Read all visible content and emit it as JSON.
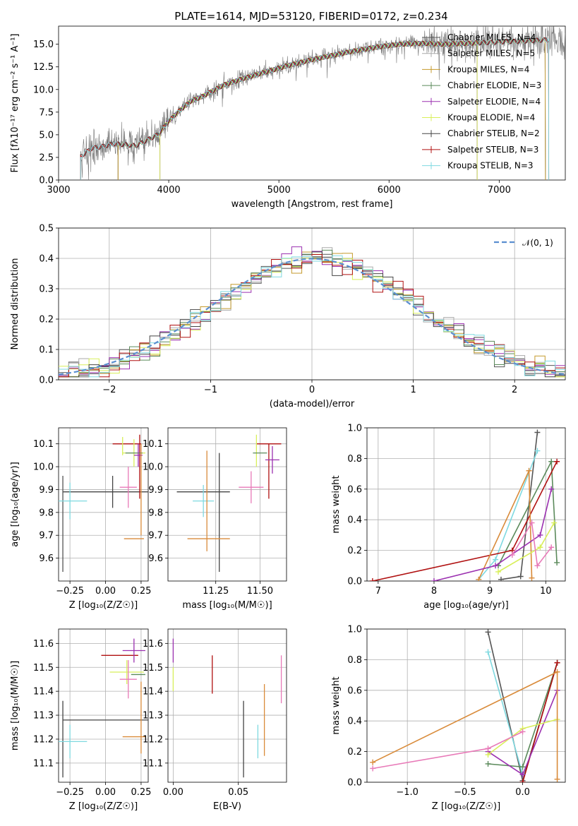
{
  "figure": {
    "title": "PLATE=1614, MJD=53120, FIBERID=0172, z=0.234"
  },
  "colors": {
    "Chabrier MILES": "#555555",
    "Salpeter MILES": "#aaaaaa",
    "Kroupa MILES": "#c49a2c",
    "Chabrier ELODIE": "#5b8a5b",
    "Salpeter ELODIE": "#9b30b0",
    "Kroupa ELODIE": "#d8ef5a",
    "Chabrier STELIB": "#444444",
    "Salpeter STELIB": "#b01010",
    "Kroupa STELIB": "#7fd9e0",
    "pink": "#e87ab8",
    "orange": "#d98b3a",
    "normal": "#5b8fd0"
  },
  "chart_data": [
    {
      "id": "spectrum",
      "type": "line",
      "title": "PLATE=1614, MJD=53120, FIBERID=0172, z=0.234",
      "xlabel": "wavelength [Angstrom, rest frame]",
      "ylabel": "Flux [fλ10⁻¹⁷ erg cm⁻² s⁻¹ A⁻¹]",
      "xlim": [
        3000,
        7600
      ],
      "ylim": [
        0,
        17
      ],
      "xticks": [
        "3000",
        "4000",
        "5000",
        "6000",
        "7000"
      ],
      "yticks": [
        "0.0",
        "2.5",
        "5.0",
        "7.5",
        "10.0",
        "12.5",
        "15.0"
      ],
      "grid": false,
      "legend_position": "top-right",
      "legend": [
        "Chabrier MILES, N_SSP=4",
        "Salpeter MILES, N_SSP=5",
        "Kroupa MILES, N_SSP=4",
        "Chabrier ELODIE, N_SSP=3",
        "Salpeter ELODIE, N_SSP=4",
        "Kroupa ELODIE, N_SSP=4",
        "Chabrier STELIB, N_SSP=2",
        "Salpeter STELIB, N_SSP=3",
        "Kroupa STELIB, N_SSP=3"
      ],
      "continuum": [
        [
          3200,
          2.6
        ],
        [
          3300,
          3.5
        ],
        [
          3400,
          3.7
        ],
        [
          3500,
          4.0
        ],
        [
          3700,
          3.8
        ],
        [
          3900,
          5.0
        ],
        [
          4000,
          6.5
        ],
        [
          4100,
          7.7
        ],
        [
          4200,
          8.7
        ],
        [
          4300,
          9.2
        ],
        [
          4500,
          10.5
        ],
        [
          4700,
          11.3
        ],
        [
          4900,
          12.0
        ],
        [
          5100,
          12.7
        ],
        [
          5300,
          13.3
        ],
        [
          5500,
          13.8
        ],
        [
          5700,
          14.3
        ],
        [
          5900,
          14.7
        ],
        [
          6100,
          15.0
        ],
        [
          6300,
          15.1
        ],
        [
          6500,
          15.0
        ],
        [
          6700,
          15.1
        ],
        [
          6900,
          15.2
        ],
        [
          7100,
          15.3
        ],
        [
          7300,
          15.4
        ],
        [
          7450,
          15.5
        ]
      ],
      "model_start": {
        "MILES": 3540,
        "ELODIE": 3920,
        "STELIB": 3200
      },
      "model_end": {
        "MILES": 7420,
        "ELODIE": 6800,
        "STELIB": 7450
      }
    },
    {
      "id": "residuals",
      "type": "step",
      "xlabel": "(data-model)/error",
      "ylabel": "Normed distribution",
      "xlim": [
        -2.5,
        2.5
      ],
      "ylim": [
        0,
        0.5
      ],
      "xticks": [
        "−2",
        "−1",
        "0",
        "1",
        "2"
      ],
      "yticks": [
        "0.0",
        "0.1",
        "0.2",
        "0.3",
        "0.4",
        "0.5"
      ],
      "grid": true,
      "legend_position": "top-right",
      "legend": [
        "𝒩(0, 1)"
      ],
      "bin_width": 0.1
    },
    {
      "id": "age-vs-Z",
      "type": "errorbar",
      "xlabel": "Z [log₁₀(Z/Z☉)]",
      "ylabel": "age  [log₁₀(age/yr)]",
      "xlim": [
        -0.33,
        0.3
      ],
      "ylim": [
        9.5,
        10.17
      ],
      "xticks": [
        "−0.25",
        "0.00",
        "0.25"
      ],
      "yticks": [
        "9.6",
        "9.7",
        "9.8",
        "9.9",
        "10.0",
        "10.1"
      ],
      "grid": true,
      "points": [
        {
          "model": "Chabrier STELIB",
          "x": 0.05,
          "y": 9.89,
          "xerr": 0.35,
          "yerr": 0.07
        },
        {
          "model": "Chabrier MILES",
          "x": -0.3,
          "y": 9.75,
          "xerr": 0.0,
          "yerr": 0.21
        },
        {
          "model": "Kroupa STELIB",
          "x": -0.25,
          "y": 9.85,
          "xerr": 0.12,
          "yerr": 0.08
        },
        {
          "model": "Salpeter STELIB",
          "x": 0.15,
          "y": 10.1,
          "xerr": 0.1,
          "yerr": 0.0
        },
        {
          "model": "Salpeter STELIB",
          "x": 0.24,
          "y": 10.0,
          "xerr": 0.0,
          "yerr": 0.14
        },
        {
          "model": "Kroupa ELODIE",
          "x": 0.2,
          "y": 10.06,
          "xerr": 0.08,
          "yerr": 0.06
        },
        {
          "model": "Kroupa ELODIE",
          "x": 0.12,
          "y": 10.09,
          "xerr": 0.0,
          "yerr": 0.04
        },
        {
          "model": "Chabrier ELODIE",
          "x": 0.2,
          "y": 10.06,
          "xerr": 0.06,
          "yerr": 0.0
        },
        {
          "model": "Salpeter ELODIE",
          "x": 0.23,
          "y": 10.05,
          "xerr": 0.03,
          "yerr": 0.05
        },
        {
          "model": "pink",
          "x": 0.16,
          "y": 9.91,
          "xerr": 0.06,
          "yerr": 0.09
        },
        {
          "model": "orange",
          "x": 0.2,
          "y": 9.685,
          "xerr": 0.07,
          "yerr": 0.0
        },
        {
          "model": "orange",
          "x": 0.25,
          "y": 9.9,
          "xerr": 0.0,
          "yerr": 0.2
        }
      ]
    },
    {
      "id": "age-vs-mass",
      "type": "errorbar",
      "xlabel": "mass [log₁₀(M/M☉)]",
      "ylabel": "",
      "xlim": [
        10.98,
        11.65
      ],
      "ylim": [
        9.5,
        10.17
      ],
      "xticks": [
        "11.25",
        "11.50"
      ],
      "yticks": [
        "9.6",
        "9.7",
        "9.8",
        "9.9",
        "10.0",
        "10.1"
      ],
      "grid": true,
      "points": [
        {
          "model": "Chabrier STELIB",
          "x": 11.18,
          "y": 9.89,
          "xerr": 0.15,
          "yerr": 0.0
        },
        {
          "model": "Chabrier STELIB",
          "x": 11.27,
          "y": 9.8,
          "xerr": 0.0,
          "yerr": 0.26
        },
        {
          "model": "Kroupa STELIB",
          "x": 11.18,
          "y": 9.85,
          "xerr": 0.06,
          "yerr": 0.07
        },
        {
          "model": "orange",
          "x": 11.21,
          "y": 9.685,
          "xerr": 0.12,
          "yerr": 0.0
        },
        {
          "model": "orange",
          "x": 11.2,
          "y": 9.85,
          "xerr": 0.0,
          "yerr": 0.22
        },
        {
          "model": "Salpeter STELIB",
          "x": 11.55,
          "y": 10.1,
          "xerr": 0.07,
          "yerr": 0.0
        },
        {
          "model": "Salpeter STELIB",
          "x": 11.55,
          "y": 9.98,
          "xerr": 0.0,
          "yerr": 0.12
        },
        {
          "model": "Kroupa ELODIE",
          "x": 11.48,
          "y": 10.07,
          "xerr": 0.0,
          "yerr": 0.07
        },
        {
          "model": "Chabrier ELODIE",
          "x": 11.5,
          "y": 10.06,
          "xerr": 0.04,
          "yerr": 0.0
        },
        {
          "model": "Salpeter ELODIE",
          "x": 11.57,
          "y": 10.03,
          "xerr": 0.04,
          "yerr": 0.06
        },
        {
          "model": "pink",
          "x": 11.45,
          "y": 9.91,
          "xerr": 0.07,
          "yerr": 0.07
        }
      ]
    },
    {
      "id": "massweight-vs-age",
      "type": "line",
      "xlabel": "age  [log₁₀(age/yr)]",
      "ylabel": "mass weight",
      "xlim": [
        6.8,
        10.35
      ],
      "ylim": [
        0,
        1
      ],
      "xticks": [
        "7",
        "8",
        "9",
        "10"
      ],
      "yticks": [
        "0.0",
        "0.2",
        "0.4",
        "0.6",
        "0.8",
        "1.0"
      ],
      "grid": true,
      "series": [
        {
          "model": "Chabrier MILES",
          "x": [
            9.2,
            9.55,
            9.85
          ],
          "y": [
            0.01,
            0.03,
            0.97
          ]
        },
        {
          "model": "Kroupa STELIB",
          "x": [
            8.8,
            9.1,
            9.85
          ],
          "y": [
            0.01,
            0.14,
            0.85
          ]
        },
        {
          "model": "Chabrier ELODIE",
          "x": [
            9.15,
            10.1,
            10.2
          ],
          "y": [
            0.1,
            0.78,
            0.12
          ]
        },
        {
          "model": "Salpeter STELIB",
          "x": [
            6.9,
            9.4,
            10.2
          ],
          "y": [
            0.0,
            0.2,
            0.78
          ]
        },
        {
          "model": "orange",
          "x": [
            8.8,
            9.7,
            9.75
          ],
          "y": [
            0.01,
            0.72,
            0.02
          ]
        },
        {
          "model": "Salpeter ELODIE",
          "x": [
            8.0,
            9.1,
            9.9,
            10.1
          ],
          "y": [
            0.0,
            0.1,
            0.3,
            0.6
          ]
        },
        {
          "model": "Kroupa ELODIE",
          "x": [
            9.15,
            9.9,
            10.15
          ],
          "y": [
            0.06,
            0.22,
            0.38
          ]
        },
        {
          "model": "pink",
          "x": [
            9.4,
            9.75,
            9.85,
            10.1
          ],
          "y": [
            0.17,
            0.38,
            0.1,
            0.22
          ]
        }
      ]
    },
    {
      "id": "mass-vs-Z",
      "type": "errorbar",
      "xlabel": "Z [log₁₀(Z/Z☉)]",
      "ylabel": "mass [log₁₀(M/M☉)]",
      "xlim": [
        -0.33,
        0.3
      ],
      "ylim": [
        11.02,
        11.66
      ],
      "xticks": [
        "−0.25",
        "0.00",
        "0.25"
      ],
      "yticks": [
        "11.1",
        "11.2",
        "11.3",
        "11.4",
        "11.5",
        "11.6"
      ],
      "grid": true,
      "points": [
        {
          "model": "Chabrier STELIB",
          "x": 0.05,
          "y": 11.28,
          "xerr": 0.35,
          "yerr": 0.0
        },
        {
          "model": "Chabrier STELIB",
          "x": -0.3,
          "y": 11.2,
          "xerr": 0.0,
          "yerr": 0.16
        },
        {
          "model": "Kroupa STELIB",
          "x": -0.25,
          "y": 11.19,
          "xerr": 0.12,
          "yerr": 0.07
        },
        {
          "model": "Salpeter STELIB",
          "x": 0.1,
          "y": 11.55,
          "xerr": 0.13,
          "yerr": 0.0
        },
        {
          "model": "Salpeter ELODIE",
          "x": 0.2,
          "y": 11.57,
          "xerr": 0.08,
          "yerr": 0.05
        },
        {
          "model": "Kroupa ELODIE",
          "x": 0.15,
          "y": 11.48,
          "xerr": 0.12,
          "yerr": 0.05
        },
        {
          "model": "Chabrier ELODIE",
          "x": 0.23,
          "y": 11.47,
          "xerr": 0.05,
          "yerr": 0.0
        },
        {
          "model": "pink",
          "x": 0.16,
          "y": 11.45,
          "xerr": 0.06,
          "yerr": 0.08
        },
        {
          "model": "orange",
          "x": 0.25,
          "y": 11.29,
          "xerr": 0.0,
          "yerr": 0.15
        },
        {
          "model": "orange",
          "x": 0.2,
          "y": 11.21,
          "xerr": 0.08,
          "yerr": 0.0
        },
        {
          "model": "Kroupa STELIB",
          "x": 0.25,
          "y": 11.2,
          "xerr": 0.0,
          "yerr": 0.0
        }
      ]
    },
    {
      "id": "mass-vs-EBV",
      "type": "errorbar",
      "xlabel": "E(B-V)",
      "ylabel": "",
      "xlim": [
        -0.004,
        0.087
      ],
      "ylim": [
        11.02,
        11.66
      ],
      "xticks": [
        "0.00",
        "0.05"
      ],
      "yticks": [
        "11.1",
        "11.2",
        "11.3",
        "11.4",
        "11.5",
        "11.6"
      ],
      "grid": true,
      "points": [
        {
          "model": "Salpeter ELODIE",
          "x": 0.0,
          "y": 11.57,
          "xerr": 0.0,
          "yerr": 0.05
        },
        {
          "model": "Kroupa ELODIE",
          "x": 0.0,
          "y": 11.45,
          "xerr": 0.0,
          "yerr": 0.05
        },
        {
          "model": "Salpeter STELIB",
          "x": 0.03,
          "y": 11.47,
          "xerr": 0.0,
          "yerr": 0.08
        },
        {
          "model": "Chabrier STELIB",
          "x": 0.054,
          "y": 11.2,
          "xerr": 0.0,
          "yerr": 0.16
        },
        {
          "model": "Kroupa STELIB",
          "x": 0.065,
          "y": 11.19,
          "xerr": 0.0,
          "yerr": 0.07
        },
        {
          "model": "orange",
          "x": 0.07,
          "y": 11.28,
          "xerr": 0.0,
          "yerr": 0.15
        },
        {
          "model": "pink",
          "x": 0.083,
          "y": 11.45,
          "xerr": 0.0,
          "yerr": 0.1
        }
      ]
    },
    {
      "id": "massweight-vs-Z",
      "type": "line",
      "xlabel": "Z [log₁₀(Z/Z☉)]",
      "ylabel": "mass weight",
      "xlim": [
        -1.35,
        0.37
      ],
      "ylim": [
        0,
        1
      ],
      "xticks": [
        "−1.0",
        "−0.5",
        "0.0"
      ],
      "yticks": [
        "0.0",
        "0.2",
        "0.4",
        "0.6",
        "0.8",
        "1.0"
      ],
      "grid": true,
      "series": [
        {
          "model": "Chabrier MILES",
          "x": [
            -0.3,
            0.0,
            0.3
          ],
          "y": [
            0.98,
            0.01,
            0.78
          ]
        },
        {
          "model": "Kroupa STELIB",
          "x": [
            -0.3,
            0.0
          ],
          "y": [
            0.85,
            0.05
          ]
        },
        {
          "model": "Chabrier ELODIE",
          "x": [
            -0.3,
            0.0,
            0.3
          ],
          "y": [
            0.12,
            0.1,
            0.78
          ]
        },
        {
          "model": "Salpeter STELIB",
          "x": [
            0.0,
            0.3
          ],
          "y": [
            0.0,
            0.78
          ]
        },
        {
          "model": "Salpeter ELODIE",
          "x": [
            -0.3,
            0.0,
            0.3
          ],
          "y": [
            0.2,
            0.05,
            0.6
          ]
        },
        {
          "model": "Kroupa ELODIE",
          "x": [
            -0.3,
            0.0,
            0.3
          ],
          "y": [
            0.18,
            0.35,
            0.41
          ]
        },
        {
          "model": "pink",
          "x": [
            -1.3,
            -0.3,
            0.0
          ],
          "y": [
            0.09,
            0.22,
            0.33
          ]
        },
        {
          "model": "orange",
          "x": [
            -1.3,
            0.3,
            0.3
          ],
          "y": [
            0.13,
            0.72,
            0.02
          ]
        }
      ]
    }
  ]
}
